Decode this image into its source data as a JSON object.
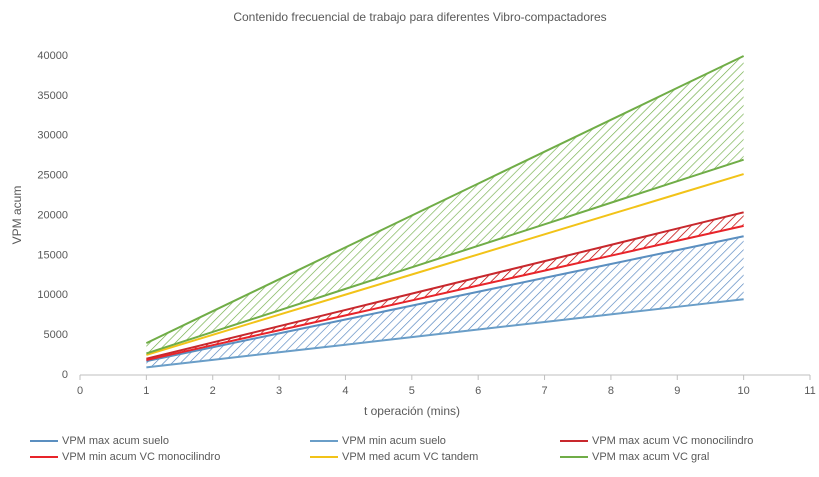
{
  "chart_data": {
    "type": "line",
    "title": "Contenido frecuencial de trabajo para diferentes Vibro-compactadores",
    "x_label": "t operación (mins)",
    "y_label": "VPM  acum",
    "x": [
      1,
      2,
      3,
      4,
      5,
      6,
      7,
      8,
      9,
      10
    ],
    "xlim": [
      0,
      11
    ],
    "xticks": [
      0,
      1,
      2,
      3,
      4,
      5,
      6,
      7,
      8,
      9,
      10,
      11
    ],
    "ylim": [
      0,
      40000
    ],
    "yticks": [
      0,
      5000,
      10000,
      15000,
      20000,
      25000,
      30000,
      35000,
      40000
    ],
    "grid": false,
    "legend": "bottom",
    "series": [
      {
        "name": "VPM max acum suelo",
        "color": "#5b8fc0",
        "values": [
          1740,
          3480,
          5220,
          6960,
          8700,
          10440,
          12180,
          13920,
          15660,
          17400
        ]
      },
      {
        "name": "VPM min acum suelo",
        "color": "#6a9ec8",
        "values": [
          950,
          1900,
          2850,
          3800,
          4750,
          5700,
          6650,
          7600,
          8550,
          9500
        ]
      },
      {
        "name": "VPM max acum VC monocilindro",
        "color": "#c8282d",
        "values": [
          2040,
          4080,
          6120,
          8160,
          10200,
          12240,
          14280,
          16320,
          18360,
          20400
        ]
      },
      {
        "name": "VPM min acum VC monocilindro",
        "color": "#e8242a",
        "values": [
          1870,
          3740,
          5610,
          7480,
          9350,
          11220,
          13090,
          14960,
          16830,
          18700
        ]
      },
      {
        "name": "VPM med acum VC tandem",
        "color": "#f2c318",
        "values": [
          2520,
          5040,
          7560,
          10080,
          12600,
          15120,
          17640,
          20160,
          22680,
          25200
        ]
      },
      {
        "name": "VPM max acum VC gral",
        "color": "#70ad47",
        "values": [
          4000,
          8000,
          12000,
          16000,
          20000,
          24000,
          28000,
          32000,
          36000,
          40000
        ]
      },
      {
        "name": null,
        "color": "#70ad47",
        "values": [
          2700,
          5400,
          8100,
          10800,
          13500,
          16200,
          18900,
          21600,
          24300,
          27000
        ]
      }
    ]
  }
}
